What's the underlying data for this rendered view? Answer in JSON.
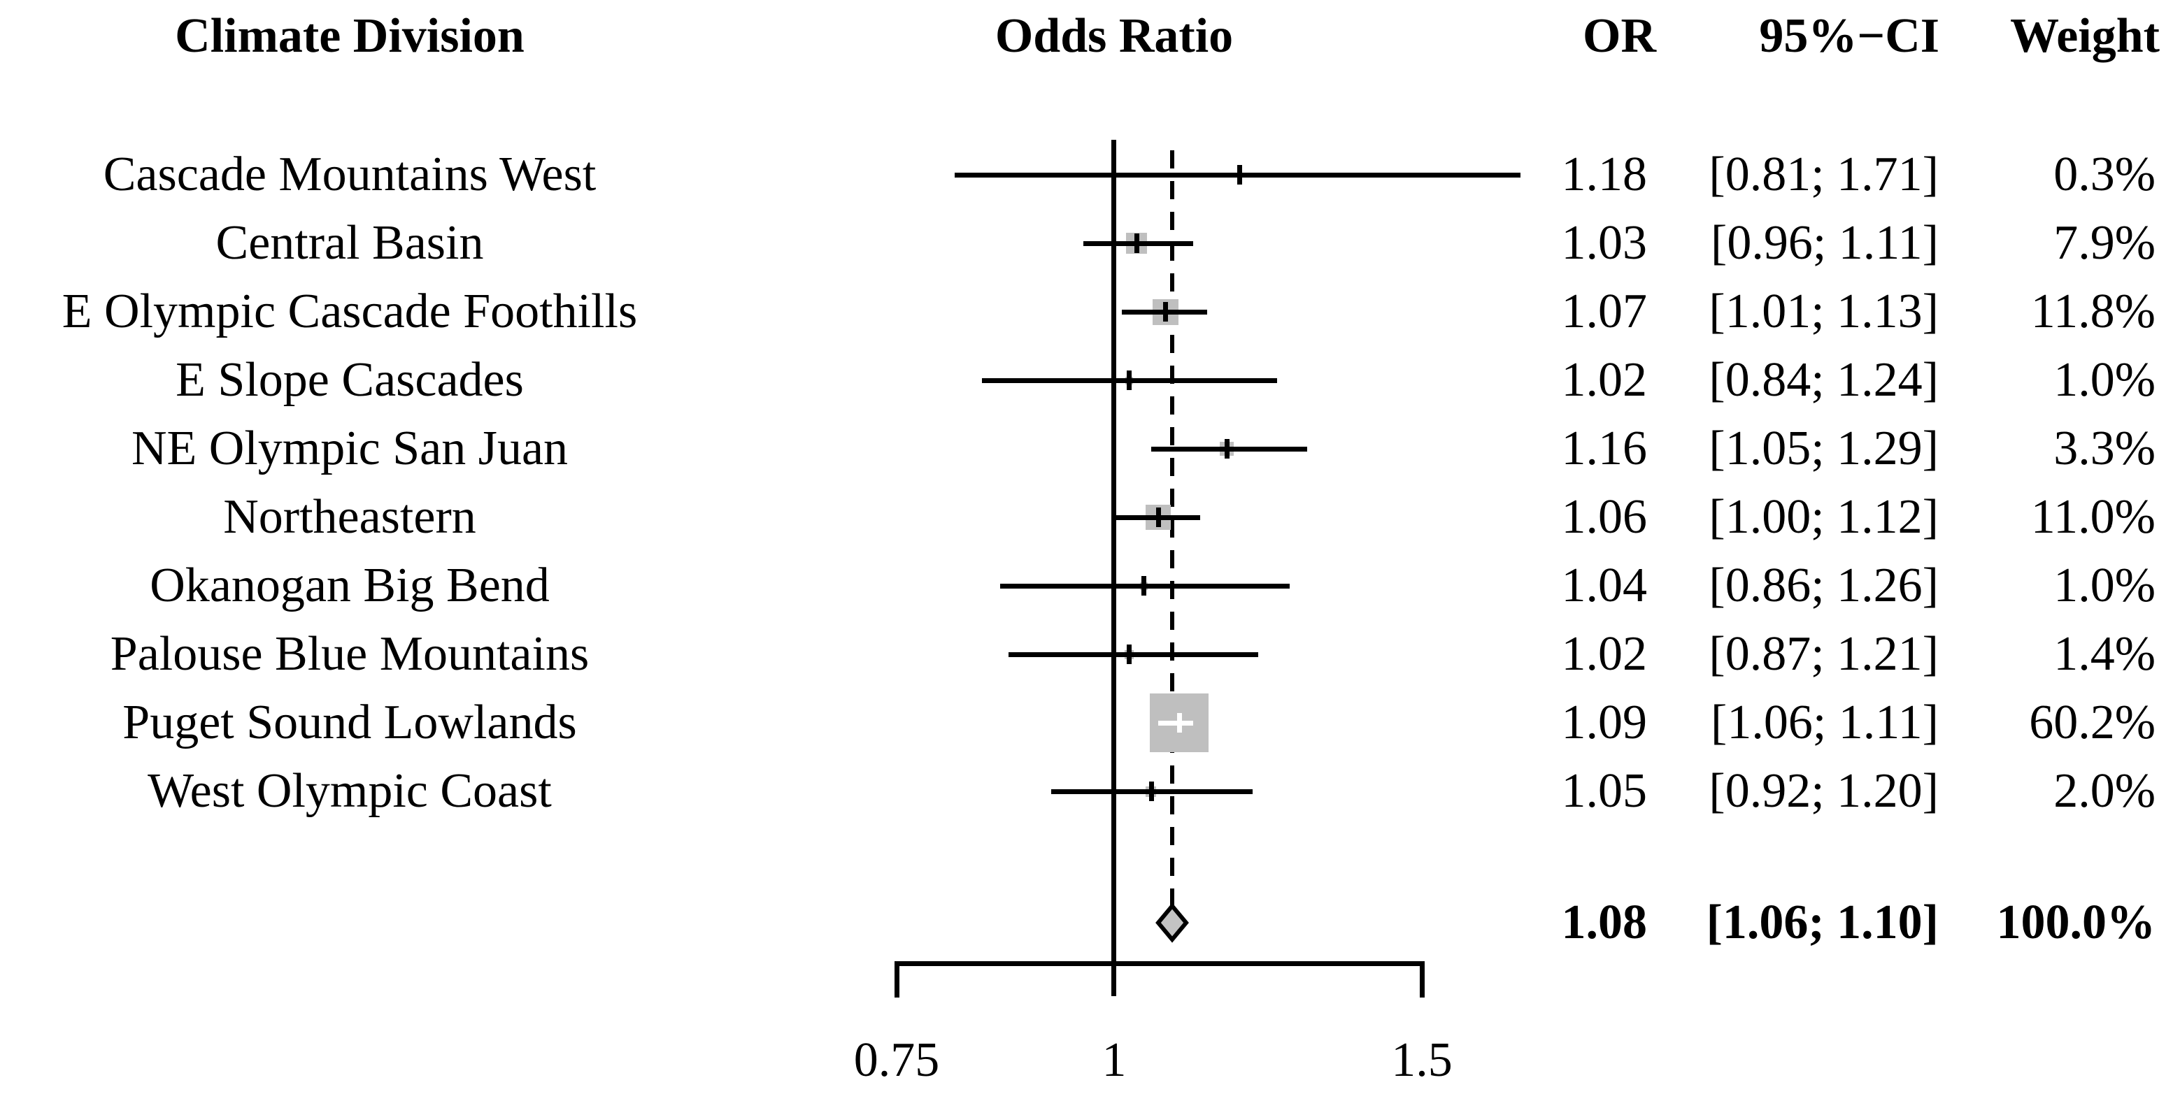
{
  "header": {
    "study_col": "Climate Division",
    "plot_col": "Odds Ratio",
    "or_col": "OR",
    "ci_col": "95%−CI",
    "weight_col": "Weight"
  },
  "chart_data": {
    "type": "forest",
    "x_scale": "log10",
    "xlabel": "Odds Ratio",
    "axis_ticks": [
      0.75,
      1,
      1.5
    ],
    "axis_tick_labels": [
      "0.75",
      "1",
      "1.5"
    ],
    "reference_line": 1.0,
    "summary_dashed_line": 1.08,
    "studies": [
      {
        "label": "Cascade Mountains West",
        "or": 1.18,
        "ci_low": 0.81,
        "ci_high": 1.71,
        "or_text": "1.18",
        "ci_text": "[0.81; 1.71]",
        "weight": 0.3,
        "weight_text": "0.3%"
      },
      {
        "label": "Central Basin",
        "or": 1.03,
        "ci_low": 0.96,
        "ci_high": 1.11,
        "or_text": "1.03",
        "ci_text": "[0.96; 1.11]",
        "weight": 7.9,
        "weight_text": "7.9%"
      },
      {
        "label": "E Olympic Cascade Foothills",
        "or": 1.07,
        "ci_low": 1.01,
        "ci_high": 1.13,
        "or_text": "1.07",
        "ci_text": "[1.01; 1.13]",
        "weight": 11.8,
        "weight_text": "11.8%"
      },
      {
        "label": "E Slope Cascades",
        "or": 1.02,
        "ci_low": 0.84,
        "ci_high": 1.24,
        "or_text": "1.02",
        "ci_text": "[0.84; 1.24]",
        "weight": 1.0,
        "weight_text": "1.0%"
      },
      {
        "label": "NE Olympic San Juan",
        "or": 1.16,
        "ci_low": 1.05,
        "ci_high": 1.29,
        "or_text": "1.16",
        "ci_text": "[1.05; 1.29]",
        "weight": 3.3,
        "weight_text": "3.3%"
      },
      {
        "label": "Northeastern",
        "or": 1.06,
        "ci_low": 1.0,
        "ci_high": 1.12,
        "or_text": "1.06",
        "ci_text": "[1.00; 1.12]",
        "weight": 11.0,
        "weight_text": "11.0%"
      },
      {
        "label": "Okanogan Big Bend",
        "or": 1.04,
        "ci_low": 0.86,
        "ci_high": 1.26,
        "or_text": "1.04",
        "ci_text": "[0.86; 1.26]",
        "weight": 1.0,
        "weight_text": "1.0%"
      },
      {
        "label": "Palouse Blue Mountains",
        "or": 1.02,
        "ci_low": 0.87,
        "ci_high": 1.21,
        "or_text": "1.02",
        "ci_text": "[0.87; 1.21]",
        "weight": 1.4,
        "weight_text": "1.4%"
      },
      {
        "label": "Puget Sound Lowlands",
        "or": 1.09,
        "ci_low": 1.06,
        "ci_high": 1.11,
        "or_text": "1.09",
        "ci_text": "[1.06; 1.11]",
        "weight": 60.2,
        "weight_text": "60.2%"
      },
      {
        "label": "West Olympic Coast",
        "or": 1.05,
        "ci_low": 0.92,
        "ci_high": 1.2,
        "or_text": "1.05",
        "ci_text": "[0.92; 1.20]",
        "weight": 2.0,
        "weight_text": "2.0%"
      }
    ],
    "summary": {
      "or": 1.08,
      "ci_low": 1.06,
      "ci_high": 1.1,
      "or_text": "1.08",
      "ci_text": "[1.06; 1.10]",
      "weight_text": "100.0%"
    }
  },
  "colors": {
    "square": "#bfbfbf",
    "diamond_fill": "#c3c3c3",
    "line": "#000000",
    "background": "#ffffff"
  }
}
